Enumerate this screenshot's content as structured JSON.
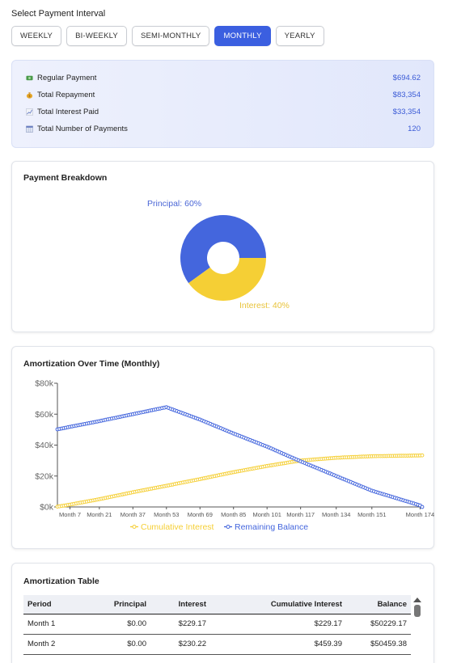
{
  "interval": {
    "title": "Select Payment Interval",
    "options": [
      "WEEKLY",
      "BI-WEEKLY",
      "SEMI-MONTHLY",
      "MONTHLY",
      "YEARLY"
    ],
    "selected": "MONTHLY"
  },
  "summary": {
    "rows": [
      {
        "label": "Regular Payment",
        "value": "$694.62",
        "icon": "money-icon"
      },
      {
        "label": "Total Repayment",
        "value": "$83,354",
        "icon": "money-bag-icon"
      },
      {
        "label": "Total Interest Paid",
        "value": "$33,354",
        "icon": "chart-trend-icon"
      },
      {
        "label": "Total Number of Payments",
        "value": "120",
        "icon": "calendar-icon"
      }
    ]
  },
  "breakdown": {
    "title": "Payment Breakdown",
    "principal_label": "Principal: 60%",
    "interest_label": "Interest: 40%"
  },
  "amortization_chart": {
    "title": "Amortization Over Time (Monthly)",
    "y_ticks": [
      "$0k",
      "$20k",
      "$40k",
      "$60k",
      "$80k"
    ],
    "x_ticks": [
      "Month 7",
      "Month 21",
      "Month 37",
      "Month 53",
      "Month 69",
      "Month 85",
      "Month 101",
      "Month 117",
      "Month 134",
      "Month 151",
      "Month 174"
    ],
    "legend": [
      "Cumulative Interest",
      "Remaining Balance"
    ]
  },
  "table": {
    "title": "Amortization Table",
    "headers": [
      "Period",
      "Principal",
      "Interest",
      "Cumulative Interest",
      "Balance"
    ],
    "rows": [
      [
        "Month 1",
        "$0.00",
        "$229.17",
        "$229.17",
        "$50229.17"
      ],
      [
        "Month 2",
        "$0.00",
        "$230.22",
        "$459.39",
        "$50459.38"
      ]
    ]
  },
  "colors": {
    "accent": "#3b5fe0",
    "interest": "#f5cf35",
    "balance": "#4466dd"
  },
  "chart_data": [
    {
      "type": "pie",
      "title": "Payment Breakdown",
      "categories": [
        "Principal",
        "Interest"
      ],
      "values": [
        60,
        40
      ]
    },
    {
      "type": "line",
      "title": "Amortization Over Time (Monthly)",
      "x": [
        1,
        7,
        21,
        37,
        53,
        69,
        85,
        101,
        117,
        134,
        151,
        174,
        175
      ],
      "series": [
        {
          "name": "Cumulative Interest",
          "values": [
            200,
            1500,
            5000,
            9500,
            13700,
            18000,
            22500,
            26500,
            30000,
            31800,
            32800,
            33300,
            33354
          ]
        },
        {
          "name": "Remaining Balance",
          "values": [
            50200,
            51800,
            55500,
            60000,
            64500,
            56500,
            47500,
            39000,
            29500,
            20000,
            10500,
            1000,
            0
          ]
        }
      ],
      "ylim": [
        0,
        80000
      ],
      "y_tick_labels": [
        "$0k",
        "$20k",
        "$40k",
        "$60k",
        "$80k"
      ],
      "x_tick_labels": [
        "Month 7",
        "Month 21",
        "Month 37",
        "Month 53",
        "Month 69",
        "Month 85",
        "Month 101",
        "Month 117",
        "Month 134",
        "Month 151",
        "Month 174"
      ],
      "legend": "bottom-center"
    }
  ]
}
